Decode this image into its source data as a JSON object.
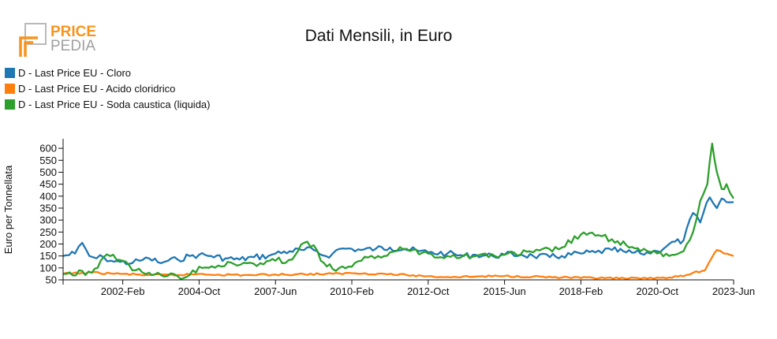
{
  "brand": {
    "line1": "PRICE",
    "line2": "PEDIA",
    "accent": "#f7941d",
    "grey": "#9a9a9a"
  },
  "chart_data": {
    "type": "line",
    "title": "Dati Mensili, in Euro",
    "xlabel": "",
    "ylabel": "Euro per Tonnellata",
    "ylim": [
      50,
      640
    ],
    "yticks": [
      50,
      100,
      150,
      200,
      250,
      300,
      350,
      400,
      450,
      500,
      550,
      600
    ],
    "xlim": [
      "2000-01",
      "2023-06"
    ],
    "xticks": [
      {
        "date": "2002-02",
        "label": "2002-Feb"
      },
      {
        "date": "2004-10",
        "label": "2004-Oct"
      },
      {
        "date": "2007-06",
        "label": "2007-Jun"
      },
      {
        "date": "2010-02",
        "label": "2010-Feb"
      },
      {
        "date": "2012-10",
        "label": "2012-Oct"
      },
      {
        "date": "2015-06",
        "label": "2015-Jun"
      },
      {
        "date": "2018-02",
        "label": "2018-Feb"
      },
      {
        "date": "2020-10",
        "label": "2020-Oct"
      },
      {
        "date": "2023-06",
        "label": "2023-Jun"
      }
    ],
    "grid": false,
    "legend_position": "top-left",
    "series": [
      {
        "name": "D - Last Price EU - Cloro",
        "color": "#1f77b4",
        "points": [
          [
            "2000-01",
            150
          ],
          [
            "2000-06",
            160
          ],
          [
            "2000-09",
            205
          ],
          [
            "2000-12",
            150
          ],
          [
            "2001-03",
            140
          ],
          [
            "2001-06",
            145
          ],
          [
            "2001-09",
            130
          ],
          [
            "2002-01",
            125
          ],
          [
            "2002-06",
            120
          ],
          [
            "2002-09",
            130
          ],
          [
            "2003-01",
            140
          ],
          [
            "2003-06",
            120
          ],
          [
            "2003-09",
            130
          ],
          [
            "2004-01",
            135
          ],
          [
            "2004-06",
            150
          ],
          [
            "2004-10",
            155
          ],
          [
            "2005-03",
            150
          ],
          [
            "2005-09",
            140
          ],
          [
            "2006-03",
            135
          ],
          [
            "2006-09",
            145
          ],
          [
            "2007-03",
            150
          ],
          [
            "2007-06",
            160
          ],
          [
            "2007-12",
            170
          ],
          [
            "2008-06",
            175
          ],
          [
            "2008-10",
            175
          ],
          [
            "2009-03",
            150
          ],
          [
            "2009-06",
            160
          ],
          [
            "2009-09",
            180
          ],
          [
            "2010-02",
            180
          ],
          [
            "2010-06",
            175
          ],
          [
            "2010-12",
            180
          ],
          [
            "2011-06",
            185
          ],
          [
            "2011-12",
            180
          ],
          [
            "2012-06",
            170
          ],
          [
            "2012-10",
            165
          ],
          [
            "2013-06",
            160
          ],
          [
            "2014-01",
            150
          ],
          [
            "2014-06",
            155
          ],
          [
            "2015-01",
            150
          ],
          [
            "2015-06",
            155
          ],
          [
            "2016-01",
            155
          ],
          [
            "2016-06",
            150
          ],
          [
            "2017-01",
            145
          ],
          [
            "2017-06",
            150
          ],
          [
            "2018-02",
            160
          ],
          [
            "2018-08",
            165
          ],
          [
            "2019-03",
            175
          ],
          [
            "2019-09",
            165
          ],
          [
            "2020-03",
            160
          ],
          [
            "2020-10",
            170
          ],
          [
            "2021-03",
            200
          ],
          [
            "2021-09",
            215
          ],
          [
            "2022-01",
            330
          ],
          [
            "2022-04",
            290
          ],
          [
            "2022-08",
            395
          ],
          [
            "2022-11",
            350
          ],
          [
            "2023-01",
            390
          ],
          [
            "2023-03",
            375
          ],
          [
            "2023-06",
            375
          ]
        ]
      },
      {
        "name": "D - Last Price EU - Acido cloridrico",
        "color": "#ff7f0e",
        "points": [
          [
            "2000-01",
            75
          ],
          [
            "2001-01",
            80
          ],
          [
            "2002-01",
            75
          ],
          [
            "2003-01",
            70
          ],
          [
            "2004-01",
            70
          ],
          [
            "2004-10",
            75
          ],
          [
            "2005-06",
            72
          ],
          [
            "2006-06",
            70
          ],
          [
            "2007-06",
            72
          ],
          [
            "2008-06",
            74
          ],
          [
            "2009-06",
            75
          ],
          [
            "2010-02",
            78
          ],
          [
            "2011-01",
            76
          ],
          [
            "2012-01",
            70
          ],
          [
            "2012-10",
            65
          ],
          [
            "2013-06",
            62
          ],
          [
            "2014-06",
            64
          ],
          [
            "2015-06",
            66
          ],
          [
            "2016-06",
            64
          ],
          [
            "2017-06",
            60
          ],
          [
            "2018-02",
            58
          ],
          [
            "2018-12",
            57
          ],
          [
            "2019-06",
            56
          ],
          [
            "2020-03",
            55
          ],
          [
            "2020-10",
            60
          ],
          [
            "2021-03",
            60
          ],
          [
            "2021-09",
            65
          ],
          [
            "2022-01",
            80
          ],
          [
            "2022-06",
            90
          ],
          [
            "2022-09",
            145
          ],
          [
            "2022-11",
            175
          ],
          [
            "2023-02",
            160
          ],
          [
            "2023-06",
            150
          ]
        ]
      },
      {
        "name": "D - Last Price EU - Soda caustica (liquida)",
        "color": "#2ca02c",
        "points": [
          [
            "2000-01",
            75
          ],
          [
            "2001-01",
            80
          ],
          [
            "2001-06",
            145
          ],
          [
            "2001-10",
            155
          ],
          [
            "2002-02",
            130
          ],
          [
            "2002-06",
            90
          ],
          [
            "2003-01",
            80
          ],
          [
            "2003-06",
            70
          ],
          [
            "2004-01",
            65
          ],
          [
            "2004-06",
            70
          ],
          [
            "2004-10",
            105
          ],
          [
            "2005-06",
            110
          ],
          [
            "2006-06",
            120
          ],
          [
            "2007-01",
            115
          ],
          [
            "2007-06",
            130
          ],
          [
            "2008-01",
            135
          ],
          [
            "2008-06",
            205
          ],
          [
            "2008-10",
            195
          ],
          [
            "2009-01",
            130
          ],
          [
            "2009-06",
            95
          ],
          [
            "2010-02",
            105
          ],
          [
            "2010-06",
            130
          ],
          [
            "2011-01",
            150
          ],
          [
            "2011-06",
            165
          ],
          [
            "2012-01",
            180
          ],
          [
            "2012-10",
            160
          ],
          [
            "2013-06",
            150
          ],
          [
            "2014-06",
            150
          ],
          [
            "2015-06",
            155
          ],
          [
            "2016-06",
            165
          ],
          [
            "2017-06",
            185
          ],
          [
            "2018-02",
            240
          ],
          [
            "2018-08",
            235
          ],
          [
            "2019-03",
            220
          ],
          [
            "2019-09",
            195
          ],
          [
            "2020-03",
            170
          ],
          [
            "2020-10",
            160
          ],
          [
            "2021-03",
            150
          ],
          [
            "2021-09",
            170
          ],
          [
            "2022-01",
            250
          ],
          [
            "2022-04",
            380
          ],
          [
            "2022-07",
            450
          ],
          [
            "2022-09",
            620
          ],
          [
            "2022-11",
            500
          ],
          [
            "2023-01",
            430
          ],
          [
            "2023-03",
            450
          ],
          [
            "2023-06",
            390
          ]
        ]
      }
    ]
  }
}
